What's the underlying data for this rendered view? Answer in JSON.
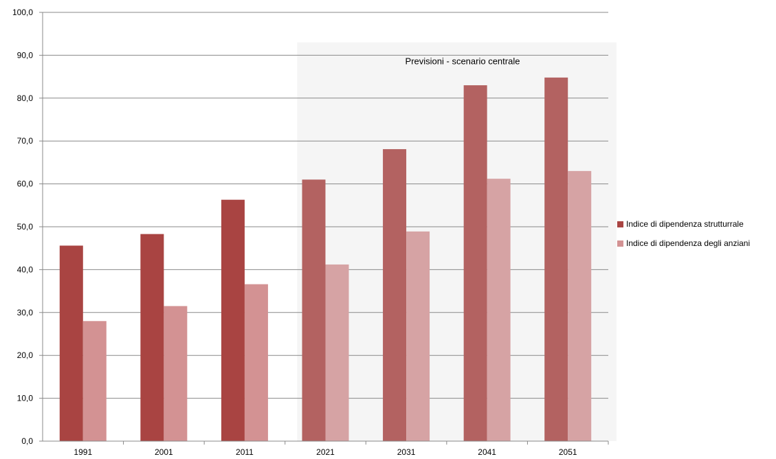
{
  "chart_data": {
    "type": "bar",
    "categories": [
      "1991",
      "2001",
      "2011",
      "2021",
      "2031",
      "2041",
      "2051"
    ],
    "series": [
      {
        "name": "Indice di dipendenza strutturrale",
        "values": [
          45.6,
          48.3,
          56.3,
          61.0,
          68.1,
          83.0,
          84.8
        ]
      },
      {
        "name": "Indice di dipendenza degli anziani",
        "values": [
          28.0,
          31.5,
          36.6,
          41.2,
          48.9,
          61.2,
          63.0
        ]
      }
    ],
    "ylim": [
      0,
      100
    ],
    "y_ticks": [
      "0,0",
      "10,0",
      "20,0",
      "30,0",
      "40,0",
      "50,0",
      "60,0",
      "70,0",
      "80,0",
      "90,0",
      "100,0"
    ],
    "grid": true,
    "legend_position": "right",
    "annotation": "Previsioni  - scenario  centrale",
    "shaded_from_category": "2021",
    "colors": {
      "series1_historic": "#a94442",
      "series1_forecast": "#b36261",
      "series2_historic": "#d39293",
      "series2_forecast": "#d6a3a4",
      "forecast_background": "#f5f5f5",
      "grid": "#888888"
    }
  }
}
